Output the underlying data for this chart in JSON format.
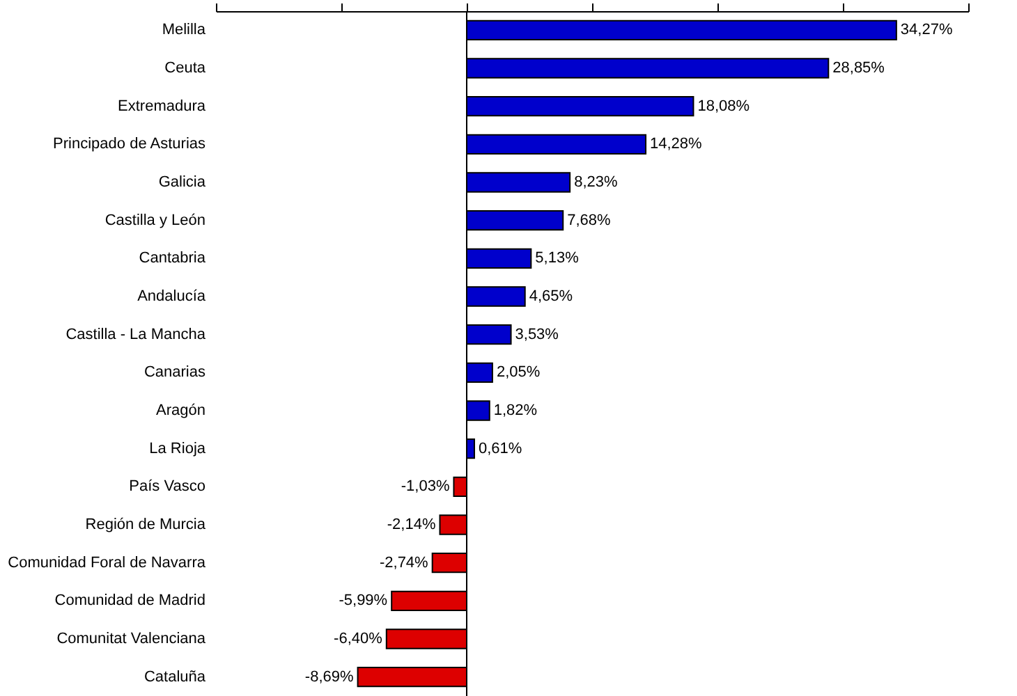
{
  "chart_data": {
    "type": "bar",
    "orientation": "horizontal",
    "categories": [
      "Melilla",
      "Ceuta",
      "Extremadura",
      "Principado de Asturias",
      "Galicia",
      "Castilla y León",
      "Cantabria",
      "Andalucía",
      "Castilla - La Mancha",
      "Canarias",
      "Aragón",
      "La Rioja",
      "País Vasco",
      "Región de Murcia",
      "Comunidad Foral de Navarra",
      "Comunidad de Madrid",
      "Comunitat Valenciana",
      "Cataluña"
    ],
    "values": [
      34.27,
      28.85,
      18.08,
      14.28,
      8.23,
      7.68,
      5.13,
      4.65,
      3.53,
      2.05,
      1.82,
      0.61,
      -1.03,
      -2.14,
      -2.74,
      -5.99,
      -6.4,
      -8.69
    ],
    "value_labels": [
      "34,27%",
      "28,85%",
      "18,08%",
      "14,28%",
      "8,23%",
      "7,68%",
      "5,13%",
      "4,65%",
      "3,53%",
      "2,05%",
      "1,82%",
      "0,61%",
      "-1,03%",
      "-2,14%",
      "-2,74%",
      "-5,99%",
      "-6,40%",
      "-8,69%"
    ],
    "colors": [
      "#0000cc",
      "#0000cc",
      "#0000cc",
      "#0000cc",
      "#0000cc",
      "#0000cc",
      "#0000cc",
      "#0000cc",
      "#0000cc",
      "#0000cc",
      "#0000cc",
      "#0000cc",
      "#dd0000",
      "#dd0000",
      "#dd0000",
      "#dd0000",
      "#dd0000",
      "#dd0000"
    ],
    "xlim": [
      -20,
      40
    ],
    "xticks": [
      {
        "value": -20,
        "label": null
      },
      {
        "value": -10,
        "label": null
      },
      {
        "value": 0,
        "label": null
      },
      {
        "value": 10,
        "label": null
      },
      {
        "value": 20,
        "label": null
      },
      {
        "value": 30,
        "label": null
      },
      {
        "value": 40,
        "label": null
      }
    ],
    "tick_labels": "y",
    "ref_lines": [
      {
        "axis": "x",
        "value": 0,
        "color": "#000000"
      }
    ],
    "grid": false
  }
}
